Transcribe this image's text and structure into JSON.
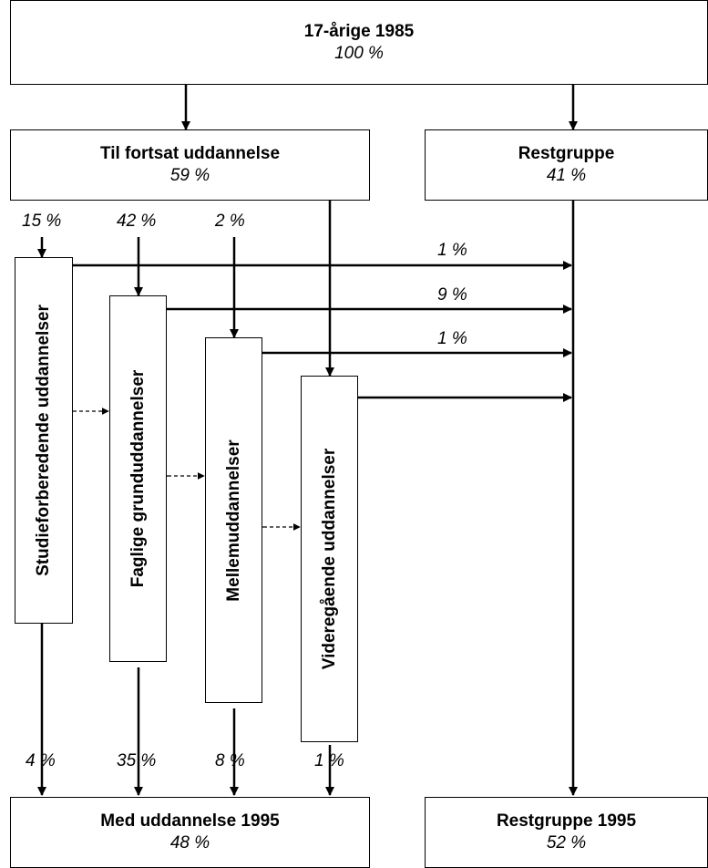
{
  "boxes": {
    "top": {
      "title": "17-årige 1985",
      "pct": "100 %"
    },
    "fortsat": {
      "title": "Til fortsat uddannelse",
      "pct": "59 %"
    },
    "rest": {
      "title": "Restgruppe",
      "pct": "41 %"
    },
    "med1995": {
      "title": "Med uddannelse 1995",
      "pct": "48 %"
    },
    "rest1995": {
      "title": "Restgruppe 1995",
      "pct": "52 %"
    }
  },
  "education_boxes": {
    "studie": "Studieforberedende uddannelser",
    "faglige": "Faglige grunduddannelser",
    "melle": "Mellemuddannelser",
    "videre": "Videregående uddannelser"
  },
  "inflow_labels": {
    "studie": "15 %",
    "faglige": "42 %",
    "melle": "2 %"
  },
  "restgroup_flow_labels": {
    "studie": "1 %",
    "faglige": "9 %",
    "melle": "1 %"
  },
  "outflow_labels": {
    "studie": "4 %",
    "faglige": "35 %",
    "melle": "8 %",
    "videre": "1 %"
  }
}
